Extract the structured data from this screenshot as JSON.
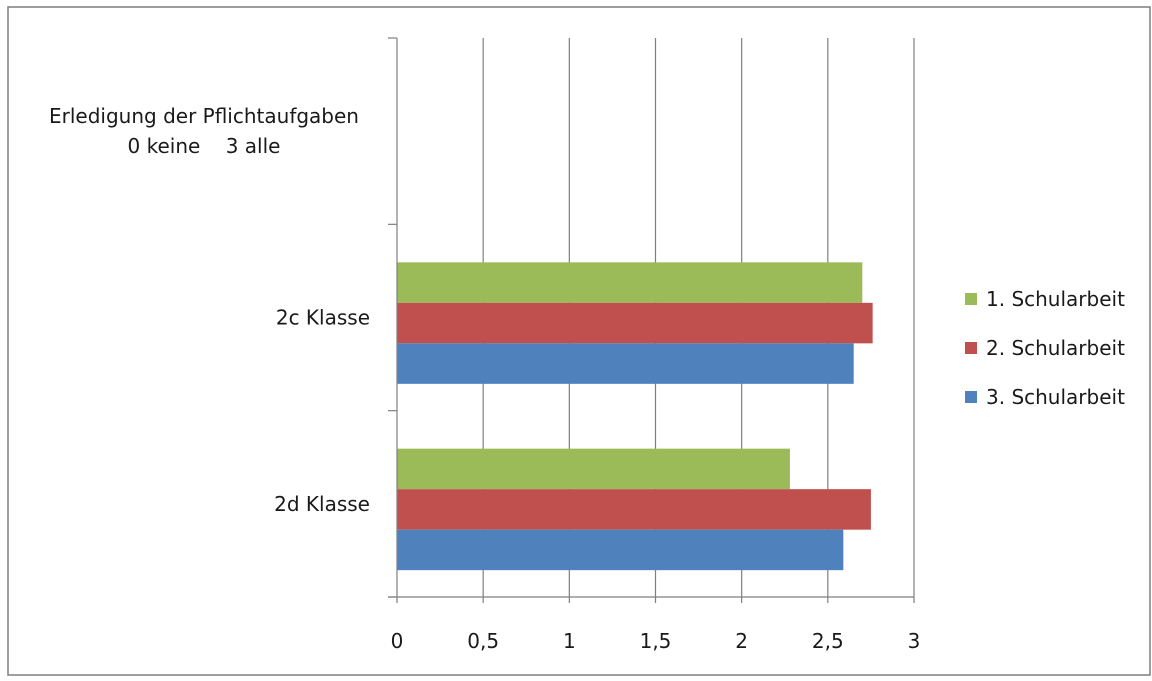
{
  "chart_data": {
    "type": "bar",
    "orientation": "horizontal",
    "categories": [
      "Erledigung der Pflichtaufgaben\n0 keine    3 alle",
      "2c Klasse",
      "2d Klasse"
    ],
    "series": [
      {
        "name": "1. Schularbeit",
        "color": "#9BBB59",
        "values": [
          null,
          2.7,
          2.28
        ]
      },
      {
        "name": "2. Schularbeit",
        "color": "#C0504D",
        "values": [
          null,
          2.76,
          2.75
        ]
      },
      {
        "name": "3. Schularbeit",
        "color": "#4F81BD",
        "values": [
          null,
          2.65,
          2.59
        ]
      }
    ],
    "xlim": [
      0,
      3
    ],
    "x_ticks": [
      "0",
      "0,5",
      "1",
      "1,5",
      "2",
      "2,5",
      "3"
    ],
    "grid": true,
    "legend_position": "right",
    "title": "",
    "xlabel": "",
    "ylabel": ""
  },
  "colors": {
    "frame_border": "#7f7f7f",
    "gridline": "#7f7f7f",
    "axis": "#7f7f7f"
  }
}
